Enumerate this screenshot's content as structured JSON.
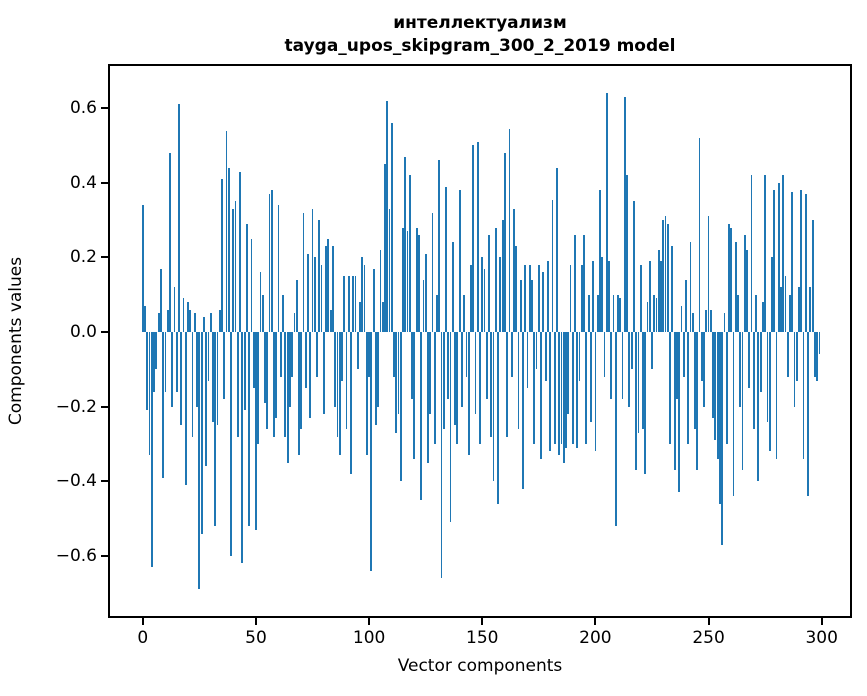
{
  "figure": {
    "title_line1": "интеллектуализм",
    "title_line2": "tayga_upos_skipgram_300_2_2019 model",
    "xlabel": "Vector components",
    "ylabel": "Components values",
    "bar_color": "#1f77b4",
    "spine_color": "#000000",
    "background": "#ffffff"
  },
  "chart_data": {
    "type": "bar",
    "title": "интеллектуализм — tayga_upos_skipgram_300_2_2019 model",
    "xlabel": "Vector components",
    "ylabel": "Components values",
    "x_start": 0,
    "x_end": 299,
    "xlim": [
      -14.5,
      312.5
    ],
    "ylim": [
      -0.761,
      0.713
    ],
    "grid": false,
    "legend": null,
    "xticks": [
      0,
      50,
      100,
      150,
      200,
      250,
      300
    ],
    "ytick_values": [
      0.6,
      0.4,
      0.2,
      0.0,
      -0.2,
      -0.4,
      -0.6
    ],
    "ytick_labels": [
      "0.6",
      "0.4",
      "0.2",
      "0.0",
      "−0.2",
      "−0.4",
      "−0.6"
    ],
    "bar_color": "#1f77b4",
    "values": [
      0.34,
      0.07,
      -0.21,
      -0.33,
      -0.63,
      -0.16,
      -0.1,
      0.05,
      0.17,
      -0.39,
      -0.16,
      0.06,
      0.48,
      -0.2,
      0.12,
      -0.16,
      0.61,
      -0.25,
      0.09,
      -0.41,
      0.08,
      0.06,
      -0.28,
      0.05,
      -0.2,
      -0.69,
      -0.54,
      0.04,
      -0.36,
      -0.13,
      0.05,
      -0.24,
      -0.52,
      -0.25,
      0.06,
      0.41,
      -0.18,
      0.54,
      0.44,
      -0.6,
      0.33,
      0.35,
      -0.28,
      0.43,
      -0.62,
      -0.21,
      0.29,
      -0.52,
      0.25,
      -0.15,
      -0.53,
      -0.3,
      0.16,
      0.1,
      -0.19,
      -0.26,
      0.37,
      0.38,
      -0.28,
      -0.23,
      0.34,
      -0.12,
      0.1,
      -0.28,
      -0.35,
      -0.2,
      -0.12,
      0.05,
      0.14,
      -0.33,
      -0.26,
      0.32,
      -0.15,
      0.21,
      -0.23,
      0.33,
      0.2,
      -0.12,
      0.3,
      0.18,
      -0.22,
      0.23,
      0.25,
      0.06,
      0.23,
      -0.2,
      -0.28,
      -0.33,
      -0.13,
      0.15,
      -0.26,
      0.15,
      -0.38,
      0.15,
      0.15,
      -0.1,
      0.08,
      0.2,
      0.18,
      -0.33,
      -0.12,
      -0.64,
      0.17,
      -0.25,
      -0.2,
      0.22,
      0.08,
      0.45,
      0.62,
      0.33,
      0.56,
      -0.12,
      -0.27,
      -0.22,
      -0.4,
      0.28,
      0.47,
      0.27,
      0.42,
      -0.18,
      -0.34,
      0.28,
      0.26,
      -0.45,
      0.14,
      0.21,
      -0.35,
      -0.22,
      0.32,
      -0.3,
      0.1,
      0.46,
      -0.66,
      -0.26,
      0.39,
      -0.18,
      -0.51,
      0.24,
      -0.25,
      -0.3,
      0.38,
      -0.2,
      0.1,
      -0.12,
      -0.33,
      0.18,
      0.5,
      -0.22,
      0.51,
      -0.3,
      0.2,
      0.17,
      -0.18,
      0.26,
      -0.28,
      -0.4,
      0.28,
      -0.46,
      0.2,
      0.3,
      0.48,
      -0.28,
      0.545,
      -0.12,
      0.33,
      0.23,
      -0.26,
      0.14,
      -0.42,
      0.18,
      -0.15,
      0.18,
      0.14,
      -0.3,
      -0.1,
      0.18,
      -0.34,
      0.16,
      -0.13,
      0.19,
      -0.32,
      0.355,
      -0.3,
      0.44,
      -0.33,
      -0.3,
      -0.35,
      -0.31,
      -0.22,
      0.18,
      -0.3,
      0.26,
      -0.31,
      -0.13,
      0.18,
      0.26,
      -0.3,
      0.1,
      -0.24,
      0.19,
      -0.32,
      0.1,
      0.38,
      0.2,
      -0.12,
      0.64,
      0.19,
      -0.18,
      0.1,
      -0.52,
      0.1,
      0.09,
      -0.18,
      0.63,
      0.42,
      -0.2,
      -0.1,
      0.35,
      -0.37,
      -0.27,
      0.18,
      -0.26,
      -0.38,
      0.08,
      0.19,
      -0.1,
      0.1,
      0.09,
      0.22,
      0.19,
      0.3,
      0.31,
      0.29,
      -0.3,
      0.23,
      -0.37,
      -0.18,
      -0.43,
      0.07,
      -0.12,
      0.14,
      -0.3,
      0.24,
      0.05,
      -0.26,
      -0.37,
      0.52,
      -0.13,
      -0.2,
      0.06,
      0.31,
      0.06,
      -0.23,
      -0.29,
      -0.34,
      -0.46,
      -0.57,
      0.05,
      -0.3,
      0.29,
      0.28,
      -0.44,
      0.24,
      0.1,
      -0.2,
      -0.37,
      0.26,
      0.22,
      -0.15,
      0.42,
      -0.26,
      0.1,
      -0.4,
      -0.16,
      0.08,
      0.42,
      -0.24,
      -0.32,
      0.2,
      0.38,
      -0.34,
      0.4,
      0.12,
      0.42,
      0.15,
      -0.12,
      0.1,
      0.375,
      -0.2,
      -0.13,
      0.12,
      0.38,
      -0.34,
      0.37,
      -0.44,
      0.12,
      0.3,
      -0.12,
      -0.13,
      -0.06
    ]
  }
}
